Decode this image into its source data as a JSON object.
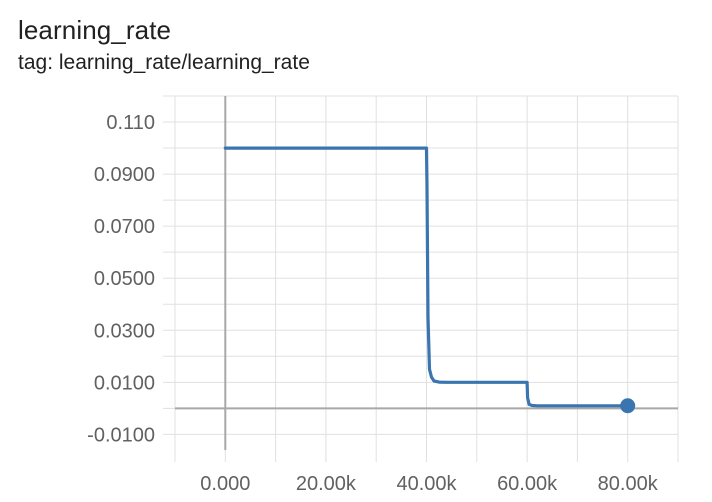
{
  "header": {
    "title": "learning_rate",
    "subtitle": "tag: learning_rate/learning_rate"
  },
  "chart_data": {
    "type": "line",
    "title": "learning_rate",
    "subtitle": "tag: learning_rate/learning_rate",
    "xlabel": "",
    "ylabel": "",
    "xlim": [
      -10000,
      90000
    ],
    "ylim": [
      -0.016,
      0.12
    ],
    "x_ticks": [
      {
        "value": 0,
        "label": "0.000"
      },
      {
        "value": 20000,
        "label": "20.00k"
      },
      {
        "value": 40000,
        "label": "40.00k"
      },
      {
        "value": 60000,
        "label": "60.00k"
      },
      {
        "value": 80000,
        "label": "80.00k"
      }
    ],
    "y_ticks": [
      {
        "value": 0.11,
        "label": "0.110"
      },
      {
        "value": 0.09,
        "label": "0.0900"
      },
      {
        "value": 0.07,
        "label": "0.0700"
      },
      {
        "value": 0.05,
        "label": "0.0500"
      },
      {
        "value": 0.03,
        "label": "0.0300"
      },
      {
        "value": 0.01,
        "label": "0.0100"
      },
      {
        "value": -0.01,
        "label": "-0.0100"
      }
    ],
    "grid": true,
    "series": [
      {
        "color": "#3a75b0",
        "x": [
          0,
          40000,
          40100,
          40300,
          40600,
          41000,
          41500,
          42500,
          44000,
          60000,
          60100,
          60400,
          61000,
          62000,
          80000
        ],
        "y": [
          0.1,
          0.1,
          0.085,
          0.035,
          0.015,
          0.012,
          0.0105,
          0.0101,
          0.01,
          0.01,
          0.004,
          0.0015,
          0.0011,
          0.001,
          0.001
        ]
      }
    ],
    "end_marker": {
      "x": 80000,
      "y": 0.001
    }
  }
}
